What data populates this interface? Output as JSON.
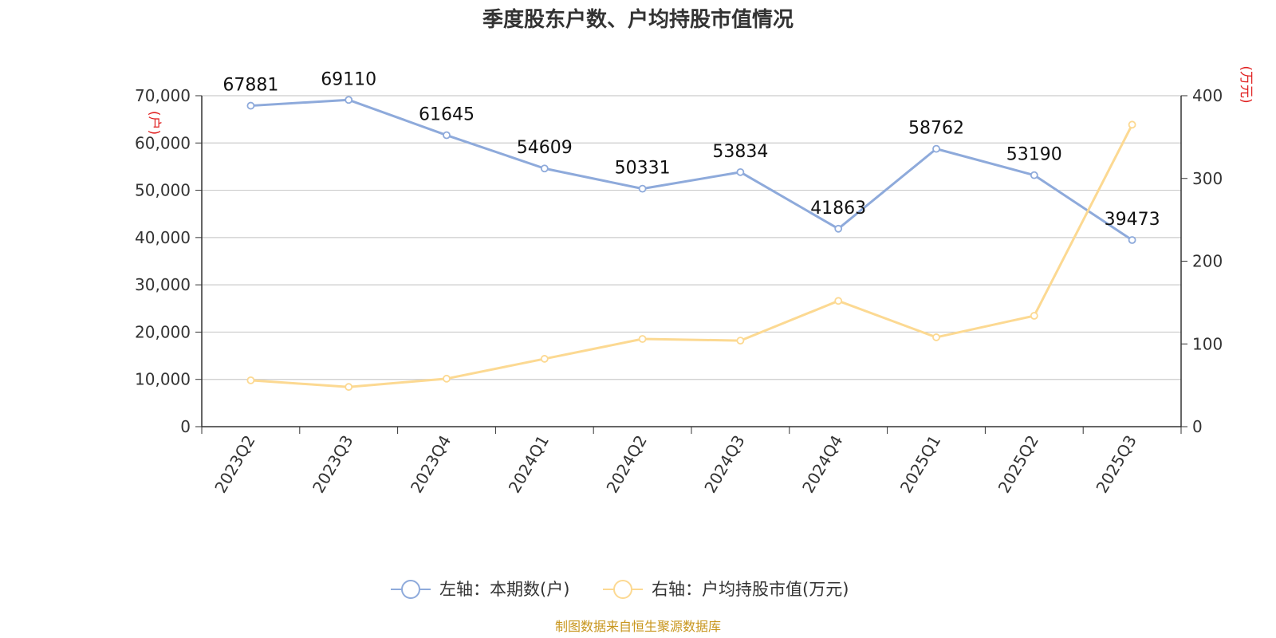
{
  "chart_data": {
    "type": "line",
    "title": "季度股东户数、户均持股市值情况",
    "categories": [
      "2023Q2",
      "2023Q3",
      "2023Q4",
      "2024Q1",
      "2024Q2",
      "2024Q3",
      "2024Q4",
      "2025Q1",
      "2025Q2",
      "2025Q3"
    ],
    "series": [
      {
        "name": "左轴：本期数(户)",
        "axis": "left",
        "color": "#8eaadb",
        "values": [
          67881,
          69110,
          61645,
          54609,
          50331,
          53834,
          41863,
          58762,
          53190,
          39473
        ],
        "labels": [
          "67881",
          "69110",
          "61645",
          "54609",
          "50331",
          "53834",
          "41863",
          "58762",
          "53190",
          "39473"
        ]
      },
      {
        "name": "右轴：户均持股市值(万元)",
        "axis": "right",
        "color": "#fcd992",
        "values": [
          56,
          48,
          58,
          82,
          106,
          104,
          152,
          108,
          134,
          365
        ]
      }
    ],
    "left_axis": {
      "unit": "(户)",
      "ylim": [
        0,
        70000
      ],
      "ticks": [
        0,
        10000,
        20000,
        30000,
        40000,
        50000,
        60000,
        70000
      ],
      "tick_labels": [
        "0",
        "10,000",
        "20,000",
        "30,000",
        "40,000",
        "50,000",
        "60,000",
        "70,000"
      ]
    },
    "right_axis": {
      "unit": "(万元)",
      "ylim": [
        0,
        400
      ],
      "ticks": [
        0,
        100,
        200,
        300,
        400
      ],
      "tick_labels": [
        "0",
        "100",
        "200",
        "300",
        "400"
      ]
    },
    "grid": true,
    "legend_position": "bottom",
    "source": "制图数据来自恒生聚源数据库"
  }
}
